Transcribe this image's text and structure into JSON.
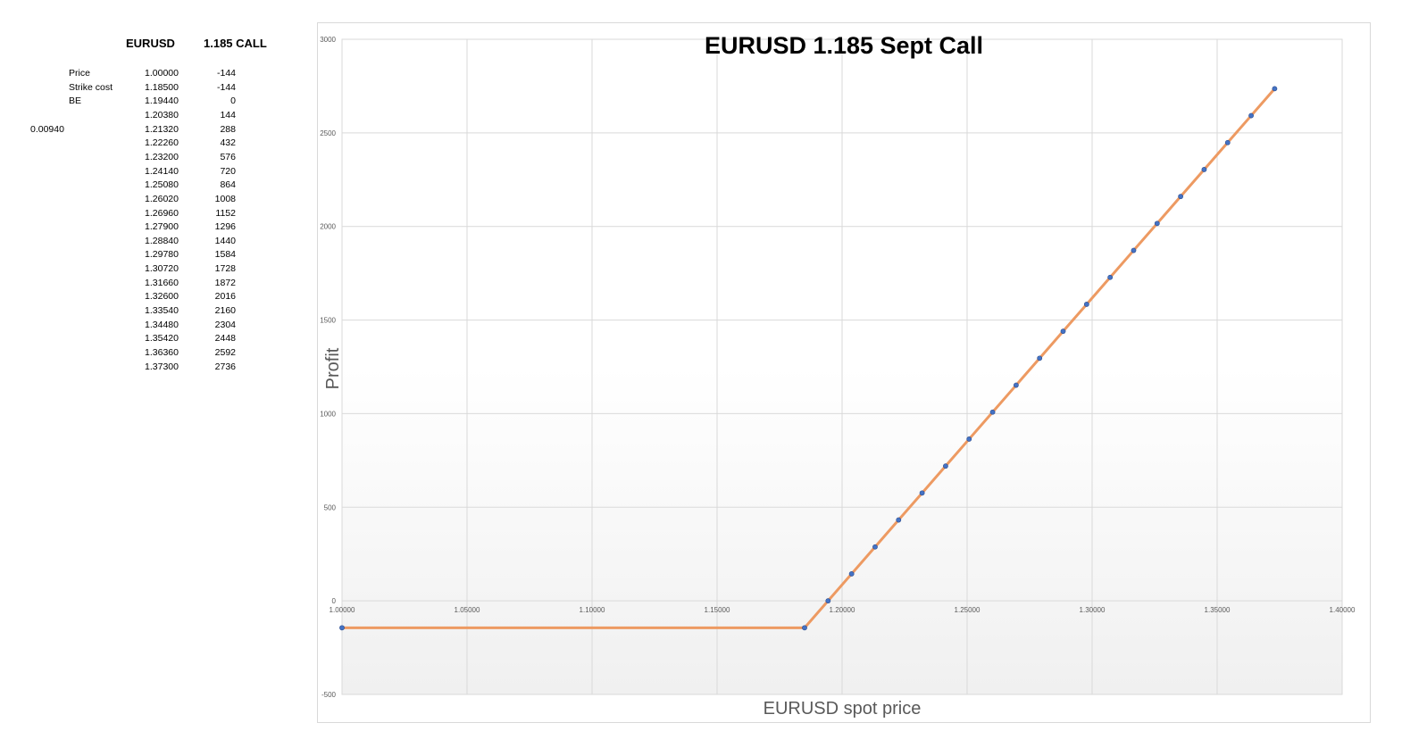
{
  "sheet": {
    "col_header_pair": "EURUSD",
    "col_header_option": "1.185 CALL",
    "side_value": "0.00940",
    "row_labels": [
      "Price",
      "Strike cost",
      "BE"
    ],
    "rows": [
      [
        "1.00000",
        "-144"
      ],
      [
        "1.18500",
        "-144"
      ],
      [
        "1.19440",
        "0"
      ],
      [
        "1.20380",
        "144"
      ],
      [
        "1.21320",
        "288"
      ],
      [
        "1.22260",
        "432"
      ],
      [
        "1.23200",
        "576"
      ],
      [
        "1.24140",
        "720"
      ],
      [
        "1.25080",
        "864"
      ],
      [
        "1.26020",
        "1008"
      ],
      [
        "1.26960",
        "1152"
      ],
      [
        "1.27900",
        "1296"
      ],
      [
        "1.28840",
        "1440"
      ],
      [
        "1.29780",
        "1584"
      ],
      [
        "1.30720",
        "1728"
      ],
      [
        "1.31660",
        "1872"
      ],
      [
        "1.32600",
        "2016"
      ],
      [
        "1.33540",
        "2160"
      ],
      [
        "1.34480",
        "2304"
      ],
      [
        "1.35420",
        "2448"
      ],
      [
        "1.36360",
        "2592"
      ],
      [
        "1.37300",
        "2736"
      ]
    ]
  },
  "chart_data": {
    "type": "scatter",
    "title": "EURUSD 1.185 Sept Call",
    "xlabel": "EURUSD spot price",
    "ylabel": "Profit",
    "xlim": [
      1.0,
      1.4
    ],
    "ylim": [
      -500,
      3000
    ],
    "x_ticks": [
      "1.00000",
      "1.05000",
      "1.10000",
      "1.15000",
      "1.20000",
      "1.25000",
      "1.30000",
      "1.35000",
      "1.40000"
    ],
    "y_ticks": [
      "-500",
      "0",
      "500",
      "1000",
      "1500",
      "2000",
      "2500",
      "3000"
    ],
    "grid": true,
    "series": [
      {
        "x": [
          1.0,
          1.185,
          1.1944,
          1.2038,
          1.2132,
          1.2226,
          1.232,
          1.2414,
          1.2508,
          1.2602,
          1.2696,
          1.279,
          1.2884,
          1.2978,
          1.3072,
          1.3166,
          1.326,
          1.3354,
          1.3448,
          1.3542,
          1.3636,
          1.373
        ],
        "y": [
          -144,
          -144,
          0,
          144,
          288,
          432,
          576,
          720,
          864,
          1008,
          1152,
          1296,
          1440,
          1584,
          1728,
          1872,
          2016,
          2160,
          2304,
          2448,
          2592,
          2736
        ],
        "line_color": "#ed9a62",
        "marker_color": "#4472c4"
      }
    ]
  }
}
